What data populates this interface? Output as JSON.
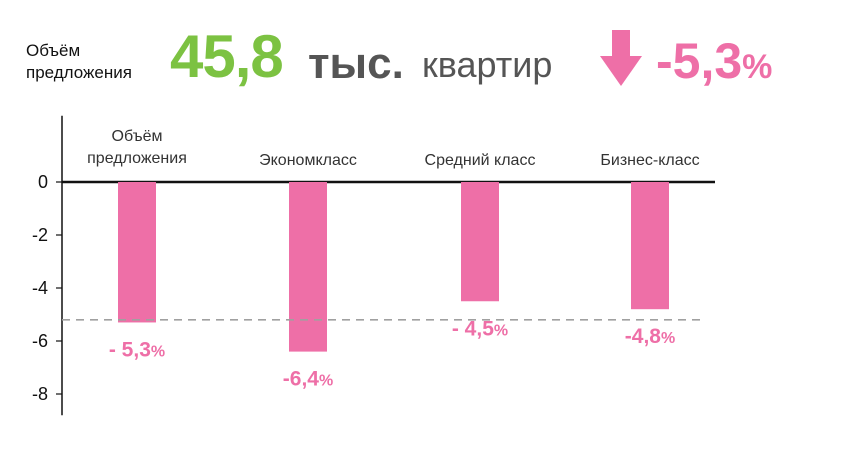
{
  "header": {
    "label_line1": "Объём",
    "label_line2": "предложения",
    "value": "45,8",
    "unit_bold": "тыс.",
    "unit_text": "квартир",
    "change": "-5,3",
    "change_pct": "%"
  },
  "colors": {
    "green": "#7cc242",
    "pink": "#ee6fa7",
    "dark_gray": "#555555",
    "axis": "#111111",
    "dashed": "#a0a0a0"
  },
  "icons": [
    "arrow-down-icon"
  ],
  "chart_data": {
    "type": "bar",
    "categories": [
      [
        "Объём",
        "предложения"
      ],
      [
        "Экономкласс"
      ],
      [
        "Средний класс"
      ],
      [
        "Бизнес-класс"
      ]
    ],
    "values": [
      -5.3,
      -6.4,
      -4.5,
      -4.8
    ],
    "labels": [
      "- 5,3",
      "-6,4",
      "- 4,5",
      "-4,8"
    ],
    "label_suffix": "%",
    "yticks": [
      "0",
      "-2",
      "-4",
      "-6",
      "-8"
    ],
    "ytick_values": [
      0,
      -2,
      -4,
      -6,
      -8
    ],
    "ylim": [
      -8.8,
      2.5
    ],
    "reference_line": -5.2,
    "grid": false
  }
}
